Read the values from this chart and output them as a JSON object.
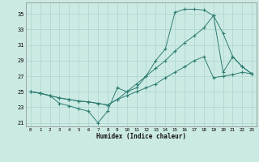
{
  "xlabel": "Humidex (Indice chaleur)",
  "background_color": "#cceae4",
  "line_color": "#2e7d72",
  "grid_color": "#aad4cc",
  "xlim": [
    -0.5,
    23.5
  ],
  "ylim": [
    20.5,
    36.5
  ],
  "yticks": [
    21,
    23,
    25,
    27,
    29,
    31,
    33,
    35
  ],
  "xticks": [
    0,
    1,
    2,
    3,
    4,
    5,
    6,
    7,
    8,
    9,
    10,
    11,
    12,
    13,
    14,
    15,
    16,
    17,
    18,
    19,
    20,
    21,
    22,
    23
  ],
  "line1_x": [
    0,
    1,
    2,
    3,
    4,
    5,
    6,
    7,
    8,
    9,
    10,
    11,
    12,
    13,
    14,
    15,
    16,
    17,
    18,
    19,
    20,
    21,
    22,
    23
  ],
  "line1_y": [
    25.0,
    24.8,
    24.5,
    23.5,
    23.2,
    22.8,
    22.5,
    21.0,
    22.5,
    25.5,
    25.0,
    25.5,
    27.0,
    29.0,
    30.5,
    35.2,
    35.6,
    35.6,
    35.5,
    34.8,
    27.5,
    29.5,
    28.2,
    27.3
  ],
  "line2_x": [
    0,
    1,
    2,
    3,
    4,
    5,
    6,
    7,
    8,
    9,
    10,
    11,
    12,
    13,
    14,
    15,
    16,
    17,
    18,
    19,
    20,
    21,
    22,
    23
  ],
  "line2_y": [
    25.0,
    24.8,
    24.5,
    24.2,
    24.0,
    23.8,
    23.7,
    23.5,
    23.3,
    24.0,
    25.0,
    26.0,
    27.0,
    28.0,
    29.0,
    30.2,
    31.3,
    32.2,
    33.2,
    34.8,
    32.5,
    29.5,
    28.2,
    27.3
  ],
  "line3_x": [
    0,
    1,
    2,
    3,
    4,
    5,
    6,
    7,
    8,
    9,
    10,
    11,
    12,
    13,
    14,
    15,
    16,
    17,
    18,
    19,
    20,
    21,
    22,
    23
  ],
  "line3_y": [
    25.0,
    24.8,
    24.5,
    24.2,
    24.0,
    23.8,
    23.7,
    23.5,
    23.3,
    24.0,
    24.5,
    25.0,
    25.5,
    26.0,
    26.8,
    27.5,
    28.2,
    29.0,
    29.5,
    26.8,
    27.0,
    27.2,
    27.5,
    27.3
  ]
}
